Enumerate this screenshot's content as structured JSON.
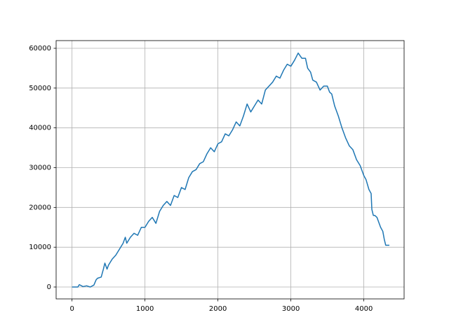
{
  "chart_data": {
    "type": "line",
    "x": [
      0,
      80,
      100,
      150,
      200,
      250,
      300,
      330,
      350,
      400,
      430,
      450,
      480,
      500,
      550,
      600,
      650,
      700,
      730,
      750,
      800,
      850,
      900,
      950,
      1000,
      1050,
      1100,
      1150,
      1200,
      1250,
      1300,
      1350,
      1400,
      1450,
      1500,
      1550,
      1600,
      1650,
      1700,
      1750,
      1800,
      1850,
      1900,
      1950,
      2000,
      2050,
      2100,
      2150,
      2200,
      2250,
      2300,
      2350,
      2400,
      2450,
      2500,
      2550,
      2600,
      2650,
      2700,
      2750,
      2800,
      2850,
      2900,
      2950,
      3000,
      3050,
      3100,
      3150,
      3200,
      3230,
      3270,
      3300,
      3350,
      3400,
      3450,
      3500,
      3530,
      3560,
      3600,
      3650,
      3700,
      3750,
      3800,
      3850,
      3900,
      3950,
      4000,
      4030,
      4070,
      4100,
      4110,
      4130,
      4150,
      4180,
      4200,
      4230,
      4260,
      4280,
      4300,
      4350
    ],
    "series": [
      {
        "name": "series",
        "color": "#1f77b4",
        "values": [
          0,
          0,
          600,
          100,
          300,
          0,
          500,
          1800,
          2200,
          2500,
          4500,
          6000,
          4500,
          5500,
          7000,
          8000,
          9500,
          11000,
          12500,
          11000,
          12500,
          13500,
          13000,
          15000,
          15000,
          16500,
          17500,
          16000,
          19000,
          20500,
          21500,
          20500,
          23000,
          22500,
          25000,
          24500,
          27500,
          29000,
          29500,
          31000,
          31500,
          33500,
          35000,
          34000,
          36000,
          36500,
          38500,
          38000,
          39500,
          41500,
          40500,
          43000,
          46000,
          44000,
          45500,
          47000,
          46000,
          49500,
          50500,
          51500,
          53000,
          52500,
          54500,
          56000,
          55500,
          57000,
          58800,
          57500,
          57500,
          55000,
          54000,
          52000,
          51500,
          49500,
          50500,
          50500,
          49000,
          48500,
          45500,
          43000,
          40000,
          37500,
          35500,
          34500,
          32000,
          30500,
          28000,
          27000,
          24500,
          23500,
          19500,
          18000,
          18000,
          17500,
          16500,
          15000,
          14000,
          12000,
          10500,
          10500
        ]
      }
    ],
    "xlim": [
      -218,
      4552
    ],
    "ylim": [
      -2990,
      61935
    ],
    "xticks": [
      0,
      1000,
      2000,
      3000,
      4000
    ],
    "yticks": [
      0,
      10000,
      20000,
      30000,
      40000,
      50000,
      60000
    ],
    "grid": true
  }
}
